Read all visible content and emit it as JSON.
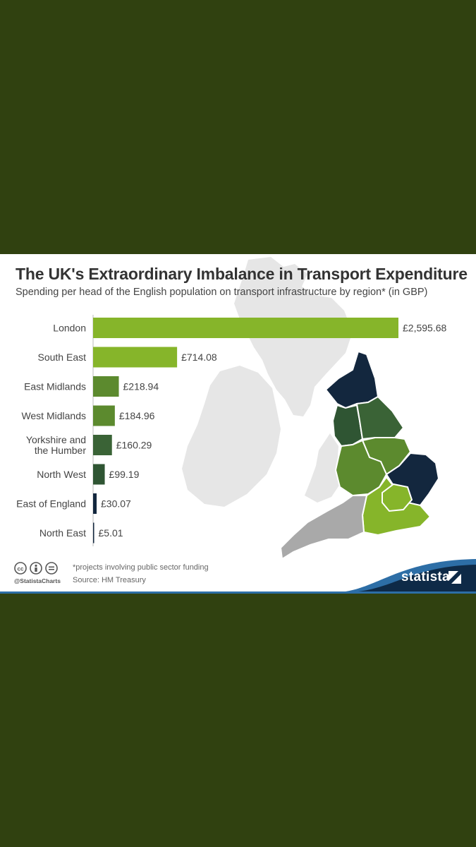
{
  "title": "The UK's Extraordinary Imbalance in Transport Expenditure",
  "subtitle": "Spending per head of the English population on transport infrastructure by region* (in GBP)",
  "footnote": "*projects involving public sector funding",
  "source": "Source: HM Treasury",
  "handle": "@StatistaCharts",
  "brand": "statista",
  "colors": {
    "background": "#304110",
    "bar_light": "#86b52a",
    "bar_mid": "#5c8a2e",
    "bar_dark": "#2f5533",
    "bar_navy": "#13273e",
    "map_grey": "#e6e6e6",
    "sw_grey": "#a9a9a9",
    "brand_navy": "#0e2a47"
  },
  "chart_data": {
    "type": "bar",
    "orientation": "horizontal",
    "categories": [
      "London",
      "South East",
      "East Midlands",
      "West Midlands",
      "Yorkshire and the Humber",
      "North West",
      "East of England",
      "North East"
    ],
    "category_lines": [
      [
        "London"
      ],
      [
        "South East"
      ],
      [
        "East Midlands"
      ],
      [
        "West Midlands"
      ],
      [
        "Yorkshire and",
        "the Humber"
      ],
      [
        "North West"
      ],
      [
        "East of England"
      ],
      [
        "North East"
      ]
    ],
    "values": [
      2595.68,
      714.08,
      218.94,
      184.96,
      160.29,
      99.19,
      30.07,
      5.01
    ],
    "value_labels": [
      "£2,595.68",
      "£714.08",
      "£218.94",
      "£184.96",
      "£160.29",
      "£99.19",
      "£30.07",
      "£5.01"
    ],
    "bar_colors": [
      "#86b52a",
      "#86b52a",
      "#5c8a2e",
      "#5c8a2e",
      "#3a6336",
      "#2f5533",
      "#13273e",
      "#13273e"
    ],
    "xlim": [
      0,
      2595.68
    ],
    "grid": false,
    "legend": "none"
  }
}
